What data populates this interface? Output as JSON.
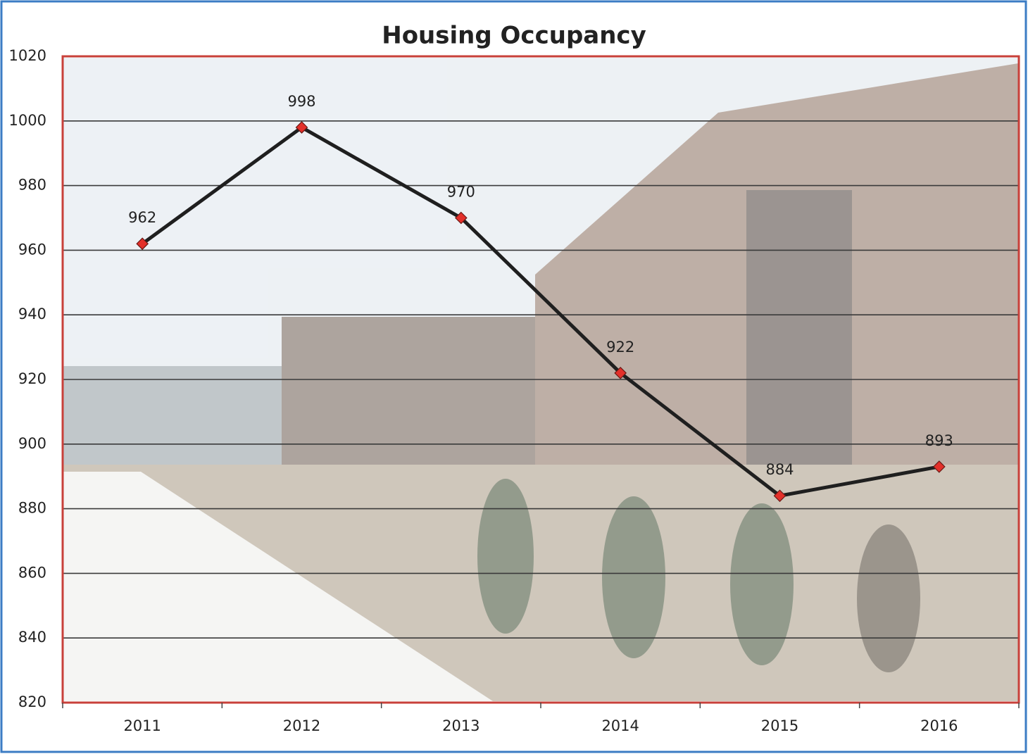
{
  "chart_data": {
    "type": "line",
    "title": "Housing Occupancy",
    "categories": [
      "2011",
      "2012",
      "2013",
      "2014",
      "2015",
      "2016"
    ],
    "series": [
      {
        "name": "Housing Occupancy",
        "color": "#1f1f1f",
        "marker_color": "#e3302a",
        "values": [
          962,
          998,
          970,
          922,
          884,
          893
        ]
      }
    ],
    "ylim": [
      820,
      1020
    ],
    "yticks": [
      820,
      840,
      860,
      880,
      900,
      920,
      940,
      960,
      980,
      1000,
      1020
    ],
    "grid": true,
    "data_labels": true
  }
}
